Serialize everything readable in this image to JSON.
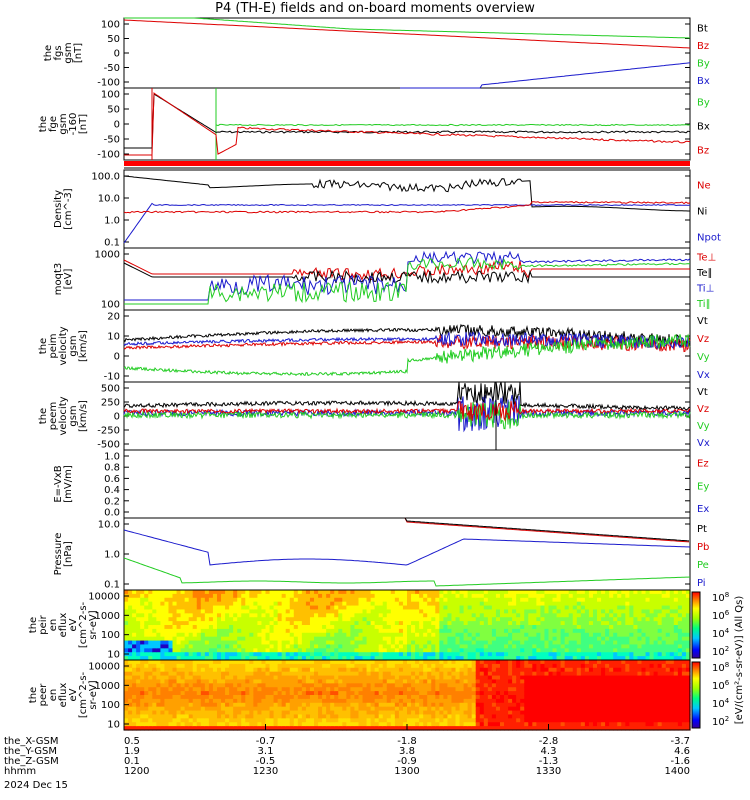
{
  "title": "P4 (TH-E) fields and on-board moments overview",
  "colors": {
    "black": "#000000",
    "red": "#dd0000",
    "green": "#22cc22",
    "blue": "#1a1acc"
  },
  "chart_data": [
    {
      "id": "p1",
      "type": "line",
      "ylabel": [
        "the",
        "fgs",
        "gsm",
        "[nT]"
      ],
      "yticks": [
        "100",
        "50",
        "0",
        "-50",
        "-100"
      ],
      "ylim": [
        -100,
        100
      ],
      "series": [
        {
          "name": "Bt",
          "color": "black"
        },
        {
          "name": "Bz",
          "color": "red"
        },
        {
          "name": "By",
          "color": "green"
        },
        {
          "name": "Bx",
          "color": "blue"
        }
      ]
    },
    {
      "id": "p2",
      "type": "line",
      "ylabel": [
        "the",
        "fge",
        "gsm",
        "-160",
        "[nT]"
      ],
      "yticks": [
        "100",
        "50",
        "0",
        "-50",
        "-100"
      ],
      "ylim": [
        -130,
        100
      ],
      "series": [
        {
          "name": "By",
          "color": "green"
        },
        {
          "name": "Bx",
          "color": "black"
        },
        {
          "name": "Bz",
          "color": "red"
        }
      ]
    },
    {
      "id": "p4",
      "type": "line",
      "ylabel": [
        "Density",
        "[cm^-3]"
      ],
      "yticks": [
        "100.0",
        "10.0",
        "1.0",
        "0.1"
      ],
      "scale": "log",
      "series": [
        {
          "name": "Ne",
          "color": "red"
        },
        {
          "name": "Ni",
          "color": "black"
        },
        {
          "name": "Npot",
          "color": "blue"
        }
      ]
    },
    {
      "id": "p5",
      "type": "line",
      "ylabel": [
        "moqt3",
        "[eV]"
      ],
      "yticks": [
        "1000",
        "100"
      ],
      "scale": "log",
      "series": [
        {
          "name": "Te⊥",
          "color": "red"
        },
        {
          "name": "Te∥",
          "color": "black"
        },
        {
          "name": "Ti⊥",
          "color": "blue"
        },
        {
          "name": "Ti∥",
          "color": "green"
        }
      ]
    },
    {
      "id": "p6",
      "type": "line",
      "ylabel": [
        "the",
        "peim",
        "velocity",
        "gsm",
        "[km/s]"
      ],
      "yticks": [
        "20",
        "10",
        "0",
        "-10"
      ],
      "ylim": [
        -15,
        20
      ],
      "series": [
        {
          "name": "Vt",
          "color": "black"
        },
        {
          "name": "Vz",
          "color": "red"
        },
        {
          "name": "Vy",
          "color": "green"
        },
        {
          "name": "Vx",
          "color": "blue"
        }
      ]
    },
    {
      "id": "p7",
      "type": "line",
      "ylabel": [
        "the",
        "peem",
        "velocity",
        "gsm",
        "[km/s]"
      ],
      "yticks": [
        "500",
        "250",
        "0",
        "-250",
        "-500"
      ],
      "ylim": [
        -600,
        900
      ],
      "series": [
        {
          "name": "Vt",
          "color": "black"
        },
        {
          "name": "Vz",
          "color": "red"
        },
        {
          "name": "Vy",
          "color": "green"
        },
        {
          "name": "Vx",
          "color": "blue"
        }
      ]
    },
    {
      "id": "p8",
      "type": "line",
      "ylabel": [
        "E=-VxB",
        "[mV/m]"
      ],
      "yticks": [
        "1.0",
        "0.8",
        "0.6",
        "0.4",
        "0.2",
        "0.0"
      ],
      "ylim": [
        0,
        1
      ],
      "series": [
        {
          "name": "Ez",
          "color": "red"
        },
        {
          "name": "Ey",
          "color": "green"
        },
        {
          "name": "Ex",
          "color": "blue"
        }
      ]
    },
    {
      "id": "p9",
      "type": "line",
      "ylabel": [
        "Pressure",
        "[nPa]"
      ],
      "yticks": [
        "10.0",
        "1.0",
        "0.1"
      ],
      "scale": "log",
      "series": [
        {
          "name": "Pt",
          "color": "black"
        },
        {
          "name": "Pb",
          "color": "red"
        },
        {
          "name": "Pe",
          "color": "green"
        },
        {
          "name": "Pi",
          "color": "blue"
        }
      ]
    },
    {
      "id": "p10",
      "type": "heatmap",
      "ylabel": [
        "the",
        "peir",
        "en",
        "eflux",
        "eV",
        "[cm^2-s-",
        "sr-eV]"
      ],
      "yticks": [
        "10000",
        "1000",
        "100",
        "10"
      ],
      "scale": "log"
    },
    {
      "id": "p11",
      "type": "heatmap",
      "ylabel": [
        "the",
        "peer",
        "en",
        "eflux",
        "eV",
        "[cm^2-s-",
        "sr-eV]"
      ],
      "yticks": [
        "10000",
        "1000",
        "100",
        "10"
      ],
      "scale": "log"
    }
  ],
  "colorbar": {
    "ticks": [
      "10^8",
      "10^6",
      "10^4",
      "10^2"
    ],
    "title": "[eV/(cm^2-s-sr-eV)] (All Qs)"
  },
  "xaxis": {
    "rows": [
      {
        "label": "the_X-GSM",
        "values": [
          "0.5",
          "-0.7",
          "-1.8",
          "-2.8",
          "-3.7"
        ]
      },
      {
        "label": "the_Y-GSM",
        "values": [
          "1.9",
          "3.1",
          "3.8",
          "4.3",
          "4.6"
        ]
      },
      {
        "label": "the_Z-GSM",
        "values": [
          "0.1",
          "-0.5",
          "-0.9",
          "-1.3",
          "-1.6"
        ]
      },
      {
        "label": "hhmm",
        "values": [
          "1200",
          "1230",
          "1300",
          "1330",
          "1400"
        ]
      }
    ],
    "date": "2024 Dec 15"
  }
}
